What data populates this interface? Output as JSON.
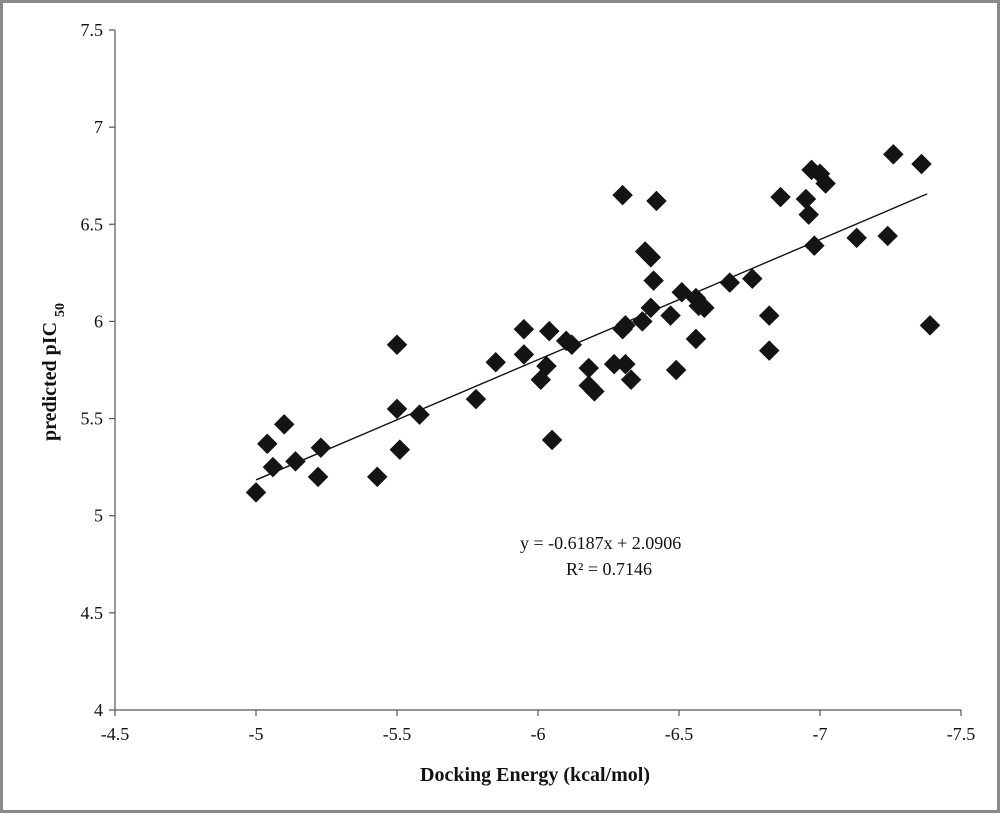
{
  "chart_data": {
    "type": "scatter",
    "xlabel": "Docking Energy (kcal/mol)",
    "ylabel": {
      "main": "predicted   pIC",
      "subscript": "50"
    },
    "xlim": [
      -4.5,
      -7.5
    ],
    "ylim": [
      4,
      7.5
    ],
    "x_ticks": [
      "-4.5",
      "-5",
      "-5.5",
      "-6",
      "-6.5",
      "-7",
      "-7.5"
    ],
    "y_ticks": [
      "4",
      "4.5",
      "5",
      "5.5",
      "6",
      "6.5",
      "7",
      "7.5"
    ],
    "grid": false,
    "marker": "diamond",
    "marker_color": "#141414",
    "trendline": {
      "slope": -0.6187,
      "intercept": 2.0906,
      "x_start": -5.0,
      "x_end": -7.38,
      "equation": "y = -0.6187x  + 2.0906",
      "r_squared": "R² = 0.7146"
    },
    "points": [
      [
        -5.0,
        5.12
      ],
      [
        -5.04,
        5.37
      ],
      [
        -5.06,
        5.25
      ],
      [
        -5.1,
        5.47
      ],
      [
        -5.14,
        5.28
      ],
      [
        -5.22,
        5.2
      ],
      [
        -5.23,
        5.35
      ],
      [
        -5.43,
        5.2
      ],
      [
        -5.5,
        5.88
      ],
      [
        -5.5,
        5.55
      ],
      [
        -5.51,
        5.34
      ],
      [
        -5.58,
        5.52
      ],
      [
        -5.78,
        5.6
      ],
      [
        -5.85,
        5.79
      ],
      [
        -5.95,
        5.96
      ],
      [
        -5.95,
        5.83
      ],
      [
        -6.01,
        5.7
      ],
      [
        -6.03,
        5.77
      ],
      [
        -6.04,
        5.95
      ],
      [
        -6.05,
        5.39
      ],
      [
        -6.1,
        5.9
      ],
      [
        -6.12,
        5.88
      ],
      [
        -6.18,
        5.76
      ],
      [
        -6.18,
        5.67
      ],
      [
        -6.2,
        5.64
      ],
      [
        -6.27,
        5.78
      ],
      [
        -6.3,
        6.65
      ],
      [
        -6.3,
        5.96
      ],
      [
        -6.31,
        5.98
      ],
      [
        -6.31,
        5.78
      ],
      [
        -6.33,
        5.7
      ],
      [
        -6.37,
        6.0
      ],
      [
        -6.38,
        6.36
      ],
      [
        -6.4,
        6.33
      ],
      [
        -6.4,
        6.07
      ],
      [
        -6.41,
        6.21
      ],
      [
        -6.42,
        6.62
      ],
      [
        -6.47,
        6.03
      ],
      [
        -6.49,
        5.75
      ],
      [
        -6.51,
        6.15
      ],
      [
        -6.56,
        6.12
      ],
      [
        -6.56,
        5.91
      ],
      [
        -6.57,
        6.08
      ],
      [
        -6.59,
        6.07
      ],
      [
        -6.68,
        6.2
      ],
      [
        -6.76,
        6.22
      ],
      [
        -6.82,
        6.03
      ],
      [
        -6.82,
        5.85
      ],
      [
        -6.86,
        6.64
      ],
      [
        -6.95,
        6.63
      ],
      [
        -6.96,
        6.55
      ],
      [
        -6.97,
        6.78
      ],
      [
        -6.98,
        6.39
      ],
      [
        -7.0,
        6.76
      ],
      [
        -7.02,
        6.71
      ],
      [
        -7.13,
        6.43
      ],
      [
        -7.24,
        6.44
      ],
      [
        -7.26,
        6.86
      ],
      [
        -7.36,
        6.81
      ],
      [
        -7.39,
        5.98
      ]
    ]
  }
}
